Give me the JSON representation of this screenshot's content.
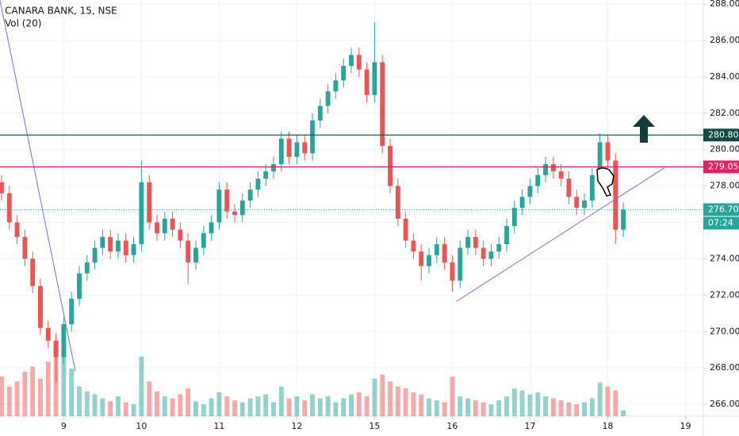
{
  "chart_data": {
    "type": "candlestick",
    "title": "CANARA BANK, 15, NSE",
    "volume_title": "Vol (20)",
    "open": [
      278.2,
      277.6,
      276.0,
      275.2,
      274.0,
      272.5,
      270.2,
      269.5,
      268.6,
      270.4,
      271.8,
      273.2,
      273.8,
      274.6,
      275.2,
      274.4,
      275.0,
      274.2,
      274.8,
      278.2,
      276.0,
      275.4,
      276.2,
      275.6,
      275.0,
      273.8,
      274.6,
      275.4,
      276.0,
      277.8,
      276.6,
      276.4,
      277.2,
      277.8,
      278.4,
      278.8,
      279.2,
      280.6,
      279.6,
      280.4,
      279.8,
      281.6,
      282.4,
      283.2,
      283.8,
      284.6,
      285.2,
      284.4,
      283.0,
      284.8,
      280.2,
      278.0,
      276.2,
      275.0,
      274.4,
      273.6,
      274.2,
      274.8,
      273.8,
      272.8,
      274.6,
      275.2,
      274.6,
      274.0,
      274.4,
      274.8,
      275.8,
      276.8,
      277.4,
      278.0,
      278.6,
      279.2,
      278.8,
      278.4,
      277.4,
      276.8,
      277.2,
      278.6,
      280.4,
      279.4,
      275.6
    ],
    "high": [
      278.6,
      278.0,
      276.4,
      275.6,
      274.4,
      272.9,
      270.6,
      269.9,
      270.8,
      272.2,
      273.6,
      274.2,
      275.0,
      275.6,
      275.6,
      275.4,
      275.4,
      275.2,
      279.4,
      278.6,
      276.4,
      276.6,
      276.6,
      276.0,
      275.4,
      275.0,
      275.8,
      276.4,
      278.2,
      278.2,
      277.0,
      277.6,
      278.2,
      278.8,
      279.2,
      279.6,
      281.0,
      281.0,
      280.8,
      280.8,
      282.0,
      282.8,
      283.6,
      284.2,
      285.0,
      285.6,
      285.6,
      284.8,
      287.0,
      285.2,
      280.6,
      278.4,
      276.6,
      275.4,
      274.8,
      274.6,
      275.2,
      275.2,
      274.2,
      275.0,
      275.6,
      275.6,
      275.0,
      274.8,
      275.2,
      276.2,
      277.2,
      277.8,
      278.4,
      279.0,
      279.6,
      279.6,
      279.2,
      278.8,
      277.8,
      277.6,
      279.0,
      280.9,
      280.8,
      279.8,
      277.1
    ],
    "low": [
      277.2,
      275.6,
      274.8,
      273.6,
      272.1,
      269.8,
      269.1,
      267.2,
      268.2,
      270.0,
      271.4,
      272.8,
      273.4,
      274.2,
      274.0,
      274.0,
      273.8,
      273.8,
      274.4,
      275.6,
      275.0,
      275.0,
      275.2,
      274.6,
      272.6,
      273.4,
      274.2,
      275.0,
      275.6,
      276.2,
      276.0,
      276.0,
      276.8,
      277.4,
      278.0,
      278.4,
      278.8,
      279.2,
      279.2,
      279.4,
      279.4,
      281.2,
      282.0,
      282.8,
      283.4,
      284.2,
      284.0,
      282.6,
      282.6,
      279.8,
      277.6,
      275.8,
      274.6,
      274.0,
      272.8,
      273.2,
      273.8,
      273.4,
      272.2,
      272.4,
      274.2,
      274.2,
      273.6,
      273.6,
      274.0,
      274.4,
      275.4,
      276.4,
      277.0,
      277.6,
      278.2,
      278.4,
      278.0,
      277.0,
      276.4,
      276.4,
      276.8,
      278.2,
      279.0,
      274.8,
      275.2
    ],
    "close": [
      277.6,
      276.0,
      275.2,
      274.0,
      272.5,
      270.2,
      269.5,
      268.6,
      270.4,
      271.8,
      273.2,
      273.8,
      274.6,
      275.2,
      274.4,
      275.0,
      274.2,
      274.8,
      278.2,
      276.0,
      275.4,
      276.2,
      275.6,
      275.0,
      273.8,
      274.6,
      275.4,
      276.0,
      277.8,
      276.6,
      276.4,
      277.2,
      277.8,
      278.4,
      278.8,
      279.2,
      280.6,
      279.6,
      280.4,
      279.8,
      281.6,
      282.4,
      283.2,
      283.8,
      284.6,
      285.2,
      284.4,
      283.0,
      284.8,
      280.2,
      278.0,
      276.2,
      275.0,
      274.4,
      273.6,
      274.2,
      274.8,
      273.8,
      272.8,
      274.6,
      275.2,
      274.6,
      274.0,
      274.4,
      274.8,
      275.8,
      276.8,
      277.4,
      278.0,
      278.6,
      279.2,
      278.8,
      278.4,
      277.4,
      276.8,
      277.2,
      278.6,
      280.4,
      279.4,
      275.6,
      276.7
    ],
    "volume": [
      40,
      30,
      35,
      45,
      50,
      38,
      55,
      62,
      70,
      48,
      30,
      25,
      22,
      18,
      15,
      20,
      14,
      12,
      60,
      35,
      25,
      20,
      18,
      22,
      28,
      15,
      12,
      18,
      24,
      20,
      16,
      14,
      18,
      20,
      22,
      14,
      30,
      18,
      20,
      16,
      22,
      18,
      20,
      14,
      18,
      22,
      24,
      20,
      38,
      42,
      35,
      30,
      28,
      24,
      22,
      18,
      16,
      14,
      40,
      20,
      18,
      16,
      14,
      12,
      16,
      20,
      28,
      26,
      22,
      24,
      20,
      18,
      16,
      14,
      12,
      14,
      18,
      34,
      30,
      26,
      6
    ],
    "volume_ylim": [
      0,
      100
    ],
    "up_color": "#26a69a",
    "down_color": "#ef5350",
    "xlim": [
      -0.2,
      90.3
    ],
    "xticks": [
      {
        "value": 8,
        "label": "9"
      },
      {
        "value": 18,
        "label": "10"
      },
      {
        "value": 28,
        "label": "11"
      },
      {
        "value": 38,
        "label": "12"
      },
      {
        "value": 48,
        "label": "15"
      },
      {
        "value": 58,
        "label": "16"
      },
      {
        "value": 68,
        "label": "17"
      },
      {
        "value": 78,
        "label": "18"
      },
      {
        "value": 88,
        "label": "19"
      }
    ],
    "ylim": [
      265.35,
      288.22
    ],
    "yticks": [
      {
        "value": 266,
        "label": "266.00"
      },
      {
        "value": 268,
        "label": "268.00"
      },
      {
        "value": 270,
        "label": "270.00"
      },
      {
        "value": 272,
        "label": "272.00"
      },
      {
        "value": 274,
        "label": "274.00"
      },
      {
        "value": 276,
        "label": "276.00"
      },
      {
        "value": 278,
        "label": "278.00"
      },
      {
        "value": 280,
        "label": "280.00"
      },
      {
        "value": 282,
        "label": "282.00"
      },
      {
        "value": 284,
        "label": "284.00"
      },
      {
        "value": 286,
        "label": "286.00"
      },
      {
        "value": 288,
        "label": "288.00"
      }
    ],
    "grid": true,
    "levels": [
      {
        "value": 280.8,
        "label": "280.80",
        "color": "#0f4c45"
      },
      {
        "value": 279.05,
        "label": "279.05",
        "color": "#e91e63"
      }
    ],
    "last_price": {
      "value": 276.7,
      "label": "276.70",
      "color": "#26a69a"
    },
    "countdown": "07:24",
    "trendlines": [
      {
        "from": [
          -0.2,
          288.2
        ],
        "to": [
          9.5,
          267.8
        ],
        "color": "#7b68ee"
      },
      {
        "from": [
          58.5,
          271.65
        ],
        "to": [
          85.3,
          279.0
        ],
        "color": "#7b68ee"
      }
    ]
  }
}
